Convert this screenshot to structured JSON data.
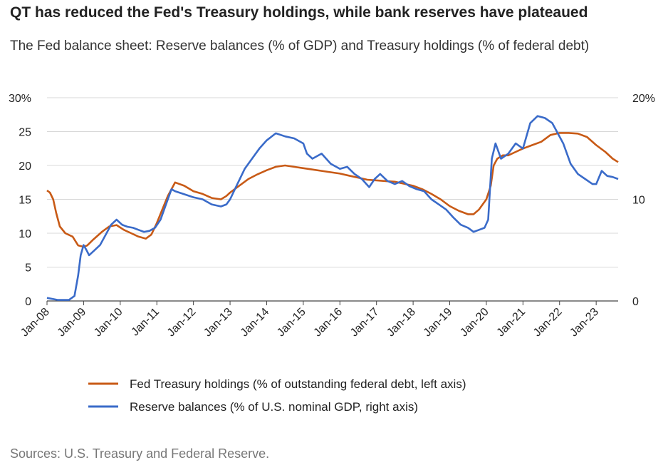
{
  "title": "QT has reduced the Fed's Treasury holdings, while bank reserves have plateaued",
  "subtitle": "The Fed balance sheet: Reserve balances (% of GDP) and Treasury holdings (% of federal debt)",
  "source": "Sources: U.S. Treasury and Federal Reserve.",
  "chart_data": {
    "type": "line",
    "x_tick_labels": [
      "Jan-08",
      "Jan-09",
      "Jan-10",
      "Jan-11",
      "Jan-12",
      "Jan-13",
      "Jan-14",
      "Jan-15",
      "Jan-16",
      "Jan-17",
      "Jan-18",
      "Jan-19",
      "Jan-20",
      "Jan-21",
      "Jan-22",
      "Jan-23"
    ],
    "x_range": [
      2008.0,
      2023.6
    ],
    "left_axis": {
      "ylim": [
        0,
        30
      ],
      "ticks": [
        0,
        5,
        10,
        15,
        20,
        25,
        30
      ],
      "tick_labels": [
        "0",
        "5",
        "10",
        "15",
        "20",
        "25",
        "30%"
      ]
    },
    "right_axis": {
      "ylim": [
        0,
        20
      ],
      "ticks": [
        0,
        10,
        20
      ],
      "tick_labels": [
        "0",
        "10",
        "20%"
      ]
    },
    "grid": true,
    "legend_position": "bottom",
    "series": [
      {
        "name": "Fed Treasury holdings (% of outstanding federal debt, left axis)",
        "axis": "left",
        "color": "#c85a16",
        "x": [
          2008.0,
          2008.08,
          2008.17,
          2008.25,
          2008.35,
          2008.5,
          2008.7,
          2008.85,
          2009.0,
          2009.1,
          2009.25,
          2009.5,
          2009.7,
          2009.9,
          2010.1,
          2010.3,
          2010.5,
          2010.7,
          2010.85,
          2011.0,
          2011.15,
          2011.3,
          2011.5,
          2011.75,
          2012.0,
          2012.25,
          2012.5,
          2012.75,
          2012.9,
          2013.0,
          2013.25,
          2013.5,
          2013.75,
          2014.0,
          2014.25,
          2014.5,
          2014.75,
          2015.0,
          2015.25,
          2015.5,
          2015.75,
          2016.0,
          2016.25,
          2016.5,
          2016.75,
          2017.0,
          2017.25,
          2017.5,
          2017.75,
          2018.0,
          2018.25,
          2018.5,
          2018.75,
          2019.0,
          2019.25,
          2019.5,
          2019.65,
          2019.8,
          2020.0,
          2020.12,
          2020.2,
          2020.3,
          2020.45,
          2020.6,
          2020.8,
          2021.0,
          2021.25,
          2021.5,
          2021.75,
          2022.0,
          2022.25,
          2022.5,
          2022.75,
          2023.0,
          2023.25,
          2023.45,
          2023.6
        ],
        "values": [
          16.3,
          16.0,
          15.0,
          13.0,
          11.0,
          10.0,
          9.5,
          8.2,
          8.0,
          8.2,
          9.0,
          10.2,
          11.0,
          11.2,
          10.5,
          10.0,
          9.5,
          9.2,
          9.8,
          11.5,
          13.5,
          15.5,
          17.5,
          17.0,
          16.2,
          15.8,
          15.2,
          15.0,
          15.5,
          16.0,
          17.0,
          18.0,
          18.7,
          19.3,
          19.8,
          20.0,
          19.8,
          19.6,
          19.4,
          19.2,
          19.0,
          18.8,
          18.5,
          18.2,
          17.9,
          17.8,
          17.7,
          17.6,
          17.3,
          17.0,
          16.5,
          15.8,
          15.0,
          14.0,
          13.3,
          12.8,
          12.8,
          13.5,
          15.0,
          17.0,
          20.0,
          21.0,
          21.5,
          21.5,
          22.0,
          22.5,
          23.0,
          23.5,
          24.5,
          24.8,
          24.8,
          24.7,
          24.2,
          23.0,
          22.0,
          21.0,
          20.5
        ]
      },
      {
        "name": "Reserve balances (% of U.S. nominal GDP, right axis)",
        "axis": "right",
        "color": "#3a6bc9",
        "x": [
          2008.0,
          2008.3,
          2008.6,
          2008.75,
          2008.85,
          2008.92,
          2009.0,
          2009.08,
          2009.15,
          2009.3,
          2009.45,
          2009.6,
          2009.75,
          2009.9,
          2010.05,
          2010.2,
          2010.35,
          2010.5,
          2010.65,
          2010.8,
          2010.95,
          2011.1,
          2011.25,
          2011.4,
          2011.5,
          2011.75,
          2012.0,
          2012.25,
          2012.5,
          2012.75,
          2012.9,
          2013.0,
          2013.2,
          2013.4,
          2013.6,
          2013.8,
          2014.0,
          2014.25,
          2014.5,
          2014.75,
          2015.0,
          2015.1,
          2015.25,
          2015.5,
          2015.75,
          2016.0,
          2016.2,
          2016.4,
          2016.6,
          2016.8,
          2016.95,
          2017.1,
          2017.3,
          2017.5,
          2017.7,
          2017.9,
          2018.1,
          2018.3,
          2018.5,
          2018.7,
          2018.9,
          2019.1,
          2019.3,
          2019.5,
          2019.65,
          2019.8,
          2019.95,
          2020.05,
          2020.15,
          2020.25,
          2020.4,
          2020.6,
          2020.8,
          2021.0,
          2021.2,
          2021.4,
          2021.6,
          2021.8,
          2021.95,
          2022.1,
          2022.3,
          2022.5,
          2022.7,
          2022.9,
          2023.0,
          2023.15,
          2023.3,
          2023.45,
          2023.6
        ],
        "values": [
          0.3,
          0.1,
          0.1,
          0.5,
          2.5,
          4.5,
          5.5,
          5.0,
          4.5,
          5.0,
          5.5,
          6.5,
          7.5,
          8.0,
          7.5,
          7.3,
          7.2,
          7.0,
          6.8,
          6.9,
          7.2,
          8.0,
          9.5,
          11.0,
          10.8,
          10.5,
          10.2,
          10.0,
          9.5,
          9.3,
          9.5,
          10.0,
          11.5,
          13.0,
          14.0,
          15.0,
          15.8,
          16.5,
          16.2,
          16.0,
          15.5,
          14.5,
          14.0,
          14.5,
          13.5,
          13.0,
          13.2,
          12.5,
          12.0,
          11.2,
          12.0,
          12.5,
          11.8,
          11.5,
          11.8,
          11.3,
          11.0,
          10.8,
          10.0,
          9.5,
          9.0,
          8.2,
          7.5,
          7.2,
          6.8,
          7.0,
          7.2,
          8.0,
          14.0,
          15.5,
          14.0,
          14.5,
          15.5,
          15.0,
          17.5,
          18.2,
          18.0,
          17.5,
          16.5,
          15.5,
          13.5,
          12.5,
          12.0,
          11.5,
          11.5,
          12.8,
          12.3,
          12.2,
          12.0
        ]
      }
    ]
  }
}
